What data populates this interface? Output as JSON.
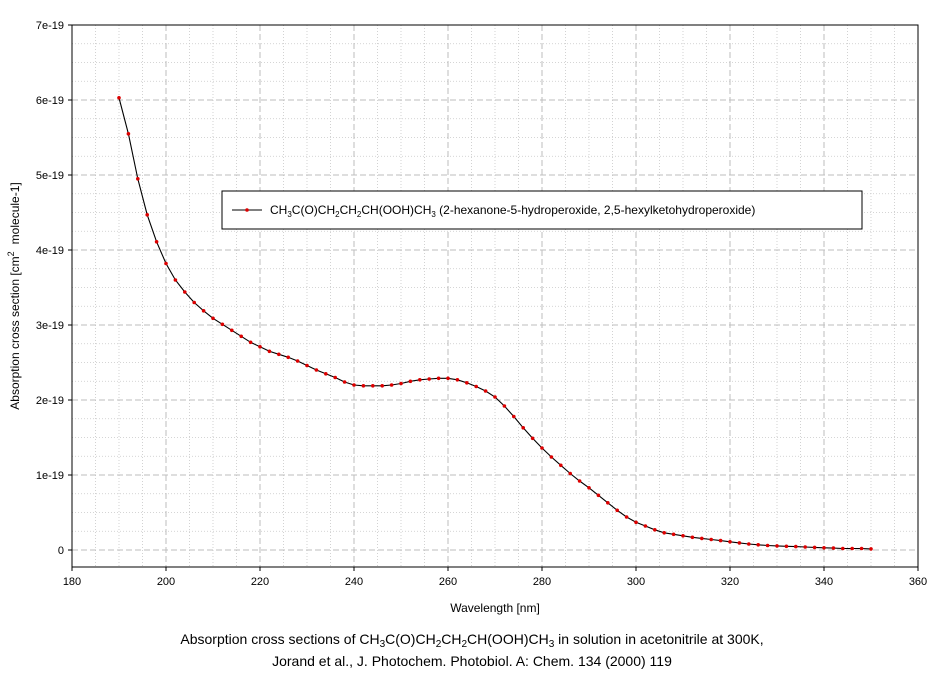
{
  "chart_data": {
    "type": "line",
    "xlabel": "Wavelength [nm]",
    "ylabel": "Absorption cross section [cm² molecule-1]",
    "xlim": [
      180,
      360
    ],
    "ylim": [
      0,
      7e-19
    ],
    "x_ticks": [
      180,
      200,
      220,
      240,
      260,
      280,
      300,
      320,
      340,
      360
    ],
    "y_ticks": [
      0,
      1e-19,
      2e-19,
      3e-19,
      4e-19,
      5e-19,
      6e-19,
      7e-19
    ],
    "x_tick_labels": [
      "180",
      "200",
      "220",
      "240",
      "260",
      "280",
      "300",
      "320",
      "340",
      "360"
    ],
    "y_tick_labels": [
      "0",
      "1e-19",
      "2e-19",
      "3e-19",
      "4e-19",
      "5e-19",
      "6e-19",
      "7e-19"
    ],
    "grid": true,
    "legend_position": "upper-right-center",
    "colors": {
      "line": "#000000",
      "marker": "#dd0000",
      "grid": "#c8c8c8"
    },
    "series": [
      {
        "name": "CH3C(O)CH2CH2CH(OOH)CH3 (2-hexanone-5-hydroperoxide, 2,5-hexylketohydroperoxide)",
        "x": [
          190,
          192,
          194,
          196,
          198,
          200,
          202,
          204,
          206,
          208,
          210,
          212,
          214,
          216,
          218,
          220,
          222,
          224,
          226,
          228,
          230,
          232,
          234,
          236,
          238,
          240,
          242,
          244,
          246,
          248,
          250,
          252,
          254,
          256,
          258,
          260,
          262,
          264,
          266,
          268,
          270,
          272,
          274,
          276,
          278,
          280,
          282,
          284,
          286,
          288,
          290,
          292,
          294,
          296,
          298,
          300,
          302,
          304,
          306,
          308,
          310,
          312,
          314,
          316,
          318,
          320,
          322,
          324,
          326,
          328,
          330,
          332,
          334,
          336,
          338,
          340,
          342,
          344,
          346,
          348,
          350
        ],
        "y": [
          6.03e-19,
          5.55e-19,
          4.95e-19,
          4.47e-19,
          4.11e-19,
          3.82e-19,
          3.6e-19,
          3.44e-19,
          3.3e-19,
          3.19e-19,
          3.09e-19,
          3.01e-19,
          2.93e-19,
          2.85e-19,
          2.77e-19,
          2.71e-19,
          2.65e-19,
          2.61e-19,
          2.57e-19,
          2.52e-19,
          2.46e-19,
          2.4e-19,
          2.35e-19,
          2.3e-19,
          2.24e-19,
          2.2e-19,
          2.19e-19,
          2.19e-19,
          2.19e-19,
          2.2e-19,
          2.22e-19,
          2.25e-19,
          2.27e-19,
          2.28e-19,
          2.29e-19,
          2.29e-19,
          2.27e-19,
          2.23e-19,
          2.18e-19,
          2.12e-19,
          2.04e-19,
          1.92e-19,
          1.78e-19,
          1.63e-19,
          1.49e-19,
          1.36e-19,
          1.24e-19,
          1.13e-19,
          1.02e-19,
          9.2e-20,
          8.3e-20,
          7.3e-20,
          6.3e-20,
          5.3e-20,
          4.4e-20,
          3.7e-20,
          3.2e-20,
          2.7e-20,
          2.3e-20,
          2.1e-20,
          1.9e-20,
          1.7e-20,
          1.55e-20,
          1.4e-20,
          1.25e-20,
          1.1e-20,
          9.5e-21,
          8e-21,
          7e-21,
          6e-21,
          5.5e-21,
          5e-21,
          4.5e-21,
          4e-21,
          3.5e-21,
          3e-21,
          2.5e-21,
          2e-21,
          2e-21,
          2e-21,
          1.5e-21
        ]
      }
    ]
  },
  "ylabel_parts": {
    "main": "Absorption cross section [cm",
    "sup": "2",
    "rest": "molecule-1]"
  },
  "legend_parts": {
    "p1": "CH",
    "s1": "3",
    "p2": "C(O)CH",
    "s2": "2",
    "p3": "CH",
    "s3": "2",
    "p4": "CH(OOH)CH",
    "s4": "3",
    "p5": " (2-hexanone-5-hydroperoxide, 2,5-hexylketohydroperoxide)"
  },
  "caption": {
    "line1": {
      "a": "Absorption cross sections of CH",
      "s1": "3",
      "b": "C(O)CH",
      "s2": "2",
      "c": "CH",
      "s3": "2",
      "d": "CH(OOH)CH",
      "s4": "3",
      "e": " in solution in acetonitrile at 300K,"
    },
    "line2": "Jorand et al., J. Photochem. Photobiol. A: Chem. 134 (2000) 119"
  }
}
